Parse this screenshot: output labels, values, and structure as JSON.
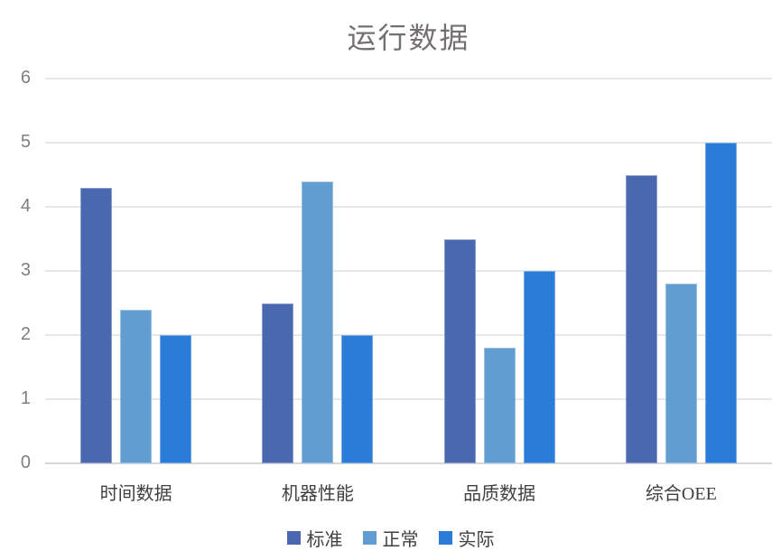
{
  "chart_data": {
    "type": "bar",
    "title": "运行数据",
    "categories": [
      "时间数据",
      "机器性能",
      "品质数据",
      "综合OEE"
    ],
    "series": [
      {
        "name": "标准",
        "color": "#4A68B0",
        "values": [
          4.3,
          2.5,
          3.5,
          4.5
        ]
      },
      {
        "name": "正常",
        "color": "#629DD1",
        "values": [
          2.4,
          4.4,
          1.8,
          2.8
        ]
      },
      {
        "name": "实际",
        "color": "#2A7CD8",
        "values": [
          2.0,
          2.0,
          3.0,
          5.0
        ]
      }
    ],
    "xlabel": "",
    "ylabel": "",
    "ylim": [
      0,
      6
    ],
    "yticks": [
      0,
      1,
      2,
      3,
      4,
      5,
      6
    ],
    "grid": true,
    "legend_position": "bottom",
    "colors": {
      "background": "#FFFFFF",
      "gridline": "#E7E7E7",
      "axis_line": "#D6D6D6",
      "title_text": "#757070",
      "tick_text": "#7F7F7F",
      "category_text": "#404040",
      "legend_text": "#404040"
    }
  }
}
